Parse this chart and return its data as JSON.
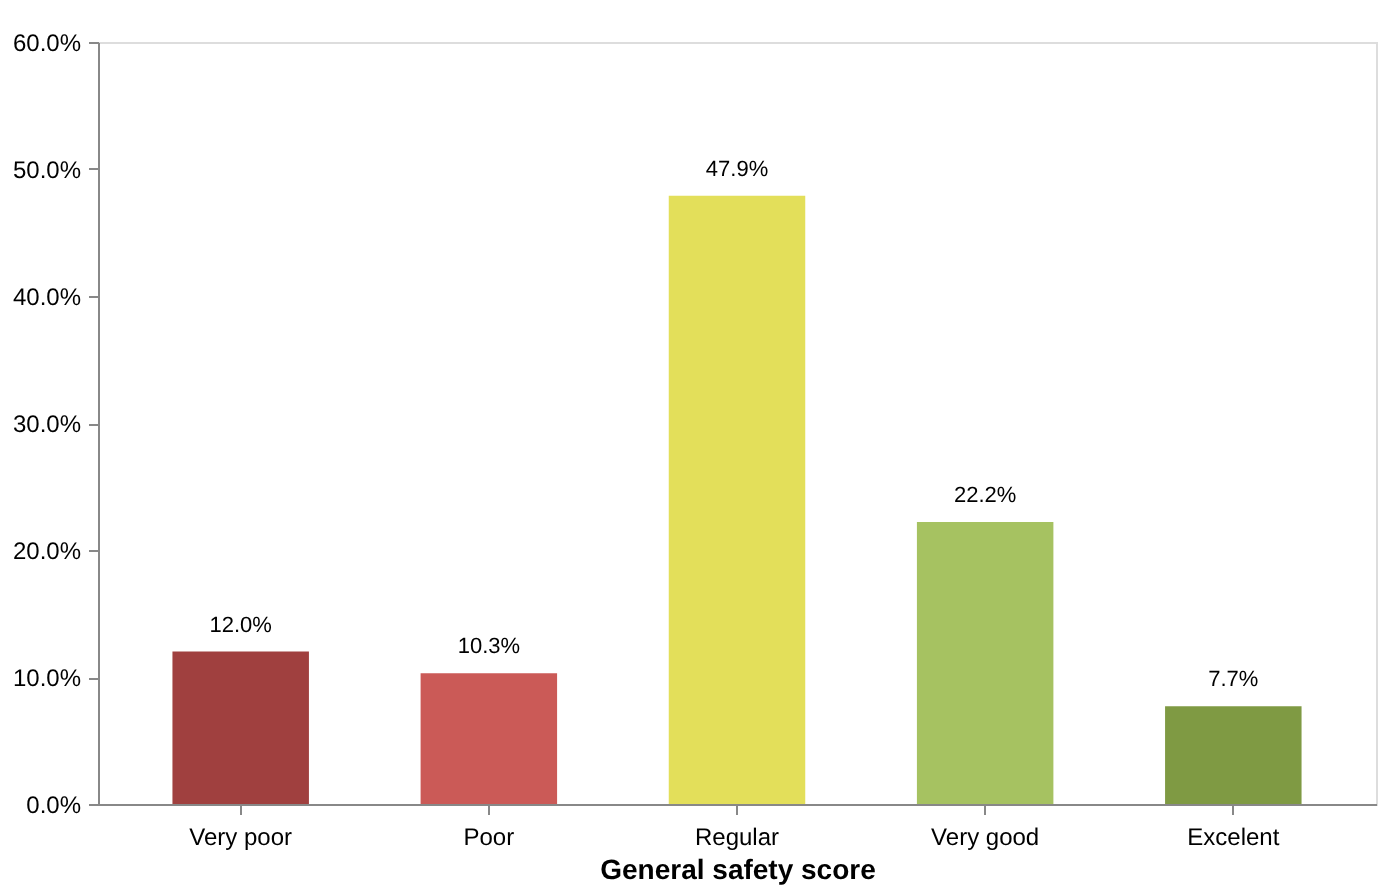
{
  "chart_data": {
    "type": "bar",
    "xlabel": "General safety score",
    "categories": [
      "Very poor",
      "Poor",
      "Regular",
      "Very good",
      "Excelent"
    ],
    "values": [
      12.0,
      10.3,
      47.9,
      22.2,
      7.7
    ],
    "colors": [
      "#a0403f",
      "#cb5a57",
      "#e3df5a",
      "#a6c261",
      "#7f9a43"
    ],
    "value_labels": [
      "12.0%",
      "10.3%",
      "47.9%",
      "22.2%",
      "7.7%"
    ],
    "ylim": [
      0,
      60
    ],
    "yticks": [
      {
        "value": 0,
        "label": "0.0%"
      },
      {
        "value": 10,
        "label": "10.0%"
      },
      {
        "value": 20,
        "label": "20.0%"
      },
      {
        "value": 30,
        "label": "30.0%"
      },
      {
        "value": 40,
        "label": "40.0%"
      },
      {
        "value": 50,
        "label": "50.0%"
      },
      {
        "value": 60,
        "label": "60.0%"
      }
    ],
    "grid": false
  }
}
